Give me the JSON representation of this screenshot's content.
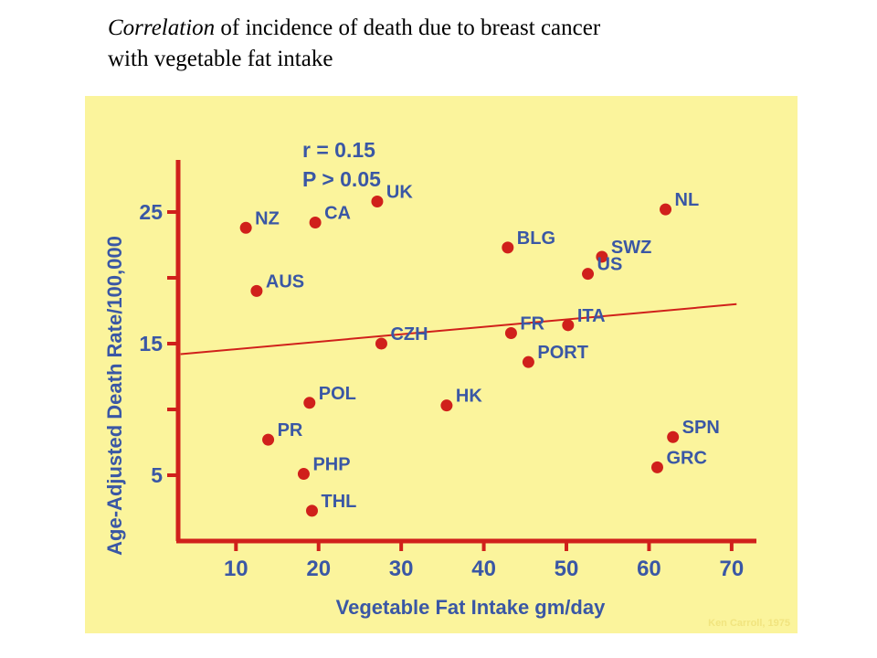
{
  "title": {
    "emphasis": "Correlation",
    "rest_line1": " of incidence of death due to breast cancer",
    "line2": "with vegetable fat intake"
  },
  "chart_data": {
    "type": "scatter",
    "xlabel": "Vegetable Fat Intake gm/day",
    "ylabel": "Age-Adjusted Death Rate/100,000",
    "xlim": [
      3,
      73
    ],
    "ylim": [
      0,
      30
    ],
    "xticks": [
      10,
      20,
      30,
      40,
      50,
      60,
      70
    ],
    "yticks_major": [
      5,
      15,
      25
    ],
    "yticks_minor": [
      10,
      20
    ],
    "stats": [
      "r = 0.15",
      "P > 0.05"
    ],
    "credit": "Ken Carroll, 1975",
    "colors": {
      "background": "#fbf49c",
      "axis": "#d0201b",
      "point": "#d0201b",
      "text": "#3a57a5",
      "credit": "#f1e47f"
    },
    "trendline": {
      "x": [
        3.3,
        70.6
      ],
      "y": [
        14.2,
        18.0
      ]
    },
    "points": [
      {
        "label": "NZ",
        "x": 11.2,
        "y": 23.8
      },
      {
        "label": "CA",
        "x": 19.6,
        "y": 24.2
      },
      {
        "label": "UK",
        "x": 27.1,
        "y": 25.8
      },
      {
        "label": "AUS",
        "x": 12.5,
        "y": 19.0
      },
      {
        "label": "BLG",
        "x": 42.9,
        "y": 22.3
      },
      {
        "label": "SWZ",
        "x": 54.3,
        "y": 21.6
      },
      {
        "label": "NL",
        "x": 62.0,
        "y": 25.2
      },
      {
        "label": "US",
        "x": 52.6,
        "y": 20.3
      },
      {
        "label": "ITA",
        "x": 50.2,
        "y": 16.4
      },
      {
        "label": "FR",
        "x": 43.3,
        "y": 15.8
      },
      {
        "label": "CZH",
        "x": 27.6,
        "y": 15.0
      },
      {
        "label": "PORT",
        "x": 45.4,
        "y": 13.6
      },
      {
        "label": "POL",
        "x": 18.9,
        "y": 10.5
      },
      {
        "label": "HK",
        "x": 35.5,
        "y": 10.3
      },
      {
        "label": "PR",
        "x": 13.9,
        "y": 7.7
      },
      {
        "label": "PHP",
        "x": 18.2,
        "y": 5.1
      },
      {
        "label": "THL",
        "x": 19.2,
        "y": 2.3
      },
      {
        "label": "SPN",
        "x": 62.9,
        "y": 7.9
      },
      {
        "label": "GRC",
        "x": 61.0,
        "y": 5.6
      }
    ]
  }
}
